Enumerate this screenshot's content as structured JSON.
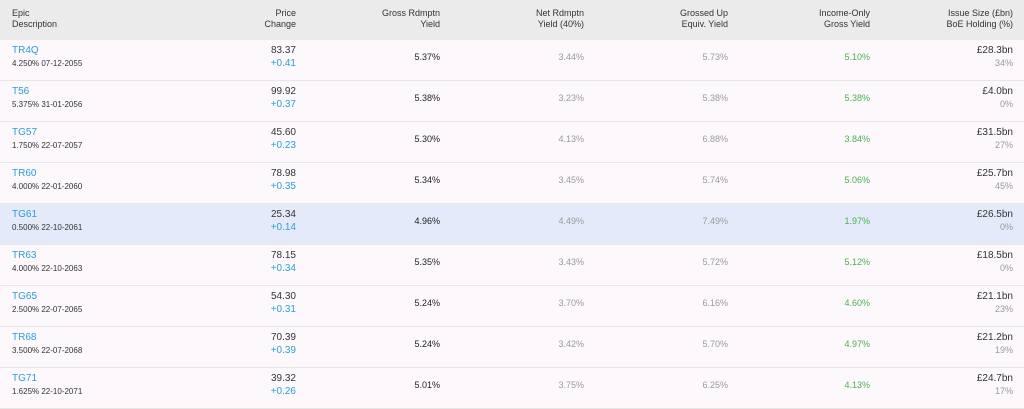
{
  "headers": {
    "epic_line1": "Epic",
    "epic_line2": "Description",
    "price_line1": "Price",
    "price_line2": "Change",
    "gross_line1": "Gross Rdmptn",
    "gross_line2": "Yield",
    "net_line1": "Net Rdmptn",
    "net_line2": "Yield (40%)",
    "grossed_line1": "Grossed Up",
    "grossed_line2": "Equiv. Yield",
    "income_line1": "Income-Only",
    "income_line2": "Gross Yield",
    "issue_line1": "Issue Size (£bn)",
    "issue_line2": "BoE Holding (%)"
  },
  "rows": [
    {
      "epic": "TR4Q",
      "desc": "4.250% 07-12-2055",
      "price": "83.37",
      "change": "+0.41",
      "gross": "5.37%",
      "net": "3.44%",
      "grossed": "5.73%",
      "income": "5.10%",
      "issue": "£28.3bn",
      "boe": "34%"
    },
    {
      "epic": "T56",
      "desc": "5.375% 31-01-2056",
      "price": "99.92",
      "change": "+0.37",
      "gross": "5.38%",
      "net": "3.23%",
      "grossed": "5.38%",
      "income": "5.38%",
      "issue": "£4.0bn",
      "boe": "0%"
    },
    {
      "epic": "TG57",
      "desc": "1.750% 22-07-2057",
      "price": "45.60",
      "change": "+0.23",
      "gross": "5.30%",
      "net": "4.13%",
      "grossed": "6.88%",
      "income": "3.84%",
      "issue": "£31.5bn",
      "boe": "27%"
    },
    {
      "epic": "TR60",
      "desc": "4.000% 22-01-2060",
      "price": "78.98",
      "change": "+0.35",
      "gross": "5.34%",
      "net": "3.45%",
      "grossed": "5.74%",
      "income": "5.06%",
      "issue": "£25.7bn",
      "boe": "45%"
    },
    {
      "epic": "TG61",
      "desc": "0.500% 22-10-2061",
      "price": "25.34",
      "change": "+0.14",
      "gross": "4.96%",
      "net": "4.49%",
      "grossed": "7.49%",
      "income": "1.97%",
      "issue": "£26.5bn",
      "boe": "0%"
    },
    {
      "epic": "TR63",
      "desc": "4.000% 22-10-2063",
      "price": "78.15",
      "change": "+0.34",
      "gross": "5.35%",
      "net": "3.43%",
      "grossed": "5.72%",
      "income": "5.12%",
      "issue": "£18.5bn",
      "boe": "0%"
    },
    {
      "epic": "TG65",
      "desc": "2.500% 22-07-2065",
      "price": "54.30",
      "change": "+0.31",
      "gross": "5.24%",
      "net": "3.70%",
      "grossed": "6.16%",
      "income": "4.60%",
      "issue": "£21.1bn",
      "boe": "23%"
    },
    {
      "epic": "TR68",
      "desc": "3.500% 22-07-2068",
      "price": "70.39",
      "change": "+0.39",
      "gross": "5.24%",
      "net": "3.42%",
      "grossed": "5.70%",
      "income": "4.97%",
      "issue": "£21.2bn",
      "boe": "19%"
    },
    {
      "epic": "TG71",
      "desc": "1.625% 22-10-2071",
      "price": "39.32",
      "change": "+0.26",
      "gross": "5.01%",
      "net": "3.75%",
      "grossed": "6.25%",
      "income": "4.13%",
      "issue": "£24.7bn",
      "boe": "17%"
    }
  ],
  "colors": {
    "link": "#2a9fd6",
    "positive": "#4caf50",
    "muted": "#9a9a9a",
    "highlight_row": "#e4eaf9",
    "header_bg": "#ebebeb"
  }
}
